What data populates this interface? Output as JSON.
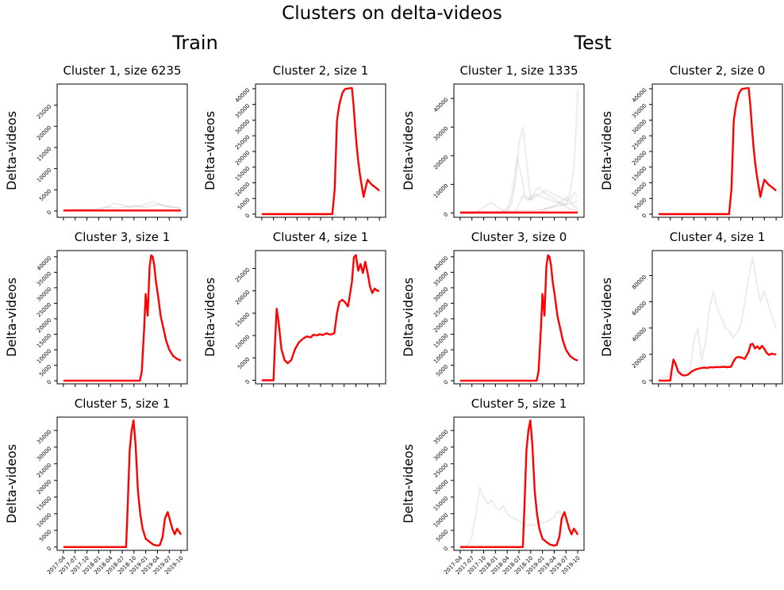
{
  "figure": {
    "title": "Clusters on delta-videos",
    "groups": [
      "Train",
      "Test"
    ]
  },
  "colors": {
    "centroid": "#ff0000",
    "members": "#9a9a9a",
    "axes": "#000000"
  },
  "x_tick_labels": [
    "2017-04",
    "2017-07",
    "2017-10",
    "2018-01",
    "2018-04",
    "2018-07",
    "2018-10",
    "2019-01",
    "2019-04",
    "2019-07",
    "2019-10"
  ],
  "chart_data": [
    {
      "type": "line",
      "group": "Train",
      "title": "Cluster 1, size 6235",
      "ylabel": "Delta-videos",
      "x_label_months": [
        "2017-04",
        "2017-07",
        "2017-10",
        "2018-01",
        "2018-04",
        "2018-07",
        "2018-10",
        "2019-01",
        "2019-04",
        "2019-07",
        "2019-10"
      ],
      "ylim": [
        -1500,
        30000
      ],
      "yticks": [
        0,
        5000,
        10000,
        15000,
        20000,
        25000
      ],
      "show_xtick_labels": false,
      "centroid": {
        "x": [
          0,
          30
        ],
        "y": [
          120,
          120
        ]
      },
      "members": [
        {
          "x": [
            0,
            4,
            8,
            11,
            14,
            18,
            21,
            24,
            27,
            30
          ],
          "y": [
            200,
            400,
            300,
            900,
            600,
            1200,
            800,
            1500,
            1000,
            700
          ]
        },
        {
          "x": [
            0,
            5,
            10,
            13,
            17,
            20,
            23,
            26,
            30
          ],
          "y": [
            100,
            300,
            500,
            1800,
            900,
            1300,
            2200,
            1100,
            600
          ]
        }
      ]
    },
    {
      "type": "line",
      "group": "Train",
      "title": "Cluster 2, size 1",
      "ylabel": "Delta-videos",
      "x_label_months": [
        "2017-04",
        "2017-07",
        "2017-10",
        "2018-01",
        "2018-04",
        "2018-07",
        "2018-10",
        "2019-01",
        "2019-04",
        "2019-07",
        "2019-10"
      ],
      "ylim": [
        -1000,
        41500
      ],
      "yticks": [
        0,
        5000,
        10000,
        15000,
        20000,
        25000,
        30000,
        35000,
        40000
      ],
      "show_xtick_labels": false,
      "centroid": {
        "x": [
          0,
          18,
          18.6,
          19.2,
          19.8,
          20.5,
          21,
          21.4,
          21.8,
          22.2,
          22.6,
          23,
          23.4,
          23.8,
          24.2,
          24.6,
          25,
          25.5,
          26,
          26.5,
          27,
          28,
          29,
          30
        ],
        "y": [
          0,
          0,
          8000,
          30000,
          35000,
          38500,
          39500,
          40000,
          40000,
          40100,
          40200,
          40200,
          35000,
          28000,
          22000,
          17000,
          13000,
          9000,
          5500,
          8500,
          11000,
          9500,
          8500,
          7500
        ]
      },
      "members": []
    },
    {
      "type": "line",
      "group": "Train",
      "title": "Cluster 3, size 1",
      "ylabel": "Delta-videos",
      "x_label_months": [
        "2017-04",
        "2017-07",
        "2017-10",
        "2018-01",
        "2018-04",
        "2018-07",
        "2018-10",
        "2019-01",
        "2019-04",
        "2019-07",
        "2019-10"
      ],
      "ylim": [
        -1000,
        42000
      ],
      "yticks": [
        0,
        5000,
        10000,
        15000,
        20000,
        25000,
        30000,
        35000,
        40000
      ],
      "show_xtick_labels": false,
      "centroid": {
        "x": [
          0,
          19.5,
          20,
          20.6,
          21,
          21.5,
          22,
          22.4,
          22.8,
          23.2,
          23.6,
          24.2,
          24.8,
          25.5,
          26.2,
          27,
          28,
          29,
          30
        ],
        "y": [
          0,
          0,
          3000,
          17000,
          28000,
          21000,
          37000,
          40500,
          40000,
          37000,
          32000,
          27000,
          21000,
          17000,
          13000,
          10000,
          8000,
          7000,
          6500
        ]
      },
      "members": []
    },
    {
      "type": "line",
      "group": "Train",
      "title": "Cluster 4, size 1",
      "ylabel": "Delta-videos",
      "x_label_months": [
        "2017-04",
        "2017-07",
        "2017-10",
        "2018-01",
        "2018-04",
        "2018-07",
        "2018-10",
        "2019-01",
        "2019-04",
        "2019-07",
        "2019-10"
      ],
      "ylim": [
        -800,
        29000
      ],
      "yticks": [
        0,
        5000,
        10000,
        15000,
        20000,
        25000
      ],
      "show_xtick_labels": false,
      "centroid": {
        "x": [
          0,
          3,
          3.4,
          3.8,
          4.3,
          5,
          5.8,
          6.6,
          7.5,
          8.5,
          9.5,
          10.5,
          11.5,
          12.5,
          13.2,
          14,
          14.8,
          15.5,
          16.5,
          17.5,
          18.5,
          19.2,
          19.8,
          20.5,
          21.2,
          22,
          23,
          23.5,
          24,
          24.6,
          25.2,
          25.8,
          26.4,
          27,
          27.6,
          28.2,
          28.8,
          29.5,
          30
        ],
        "y": [
          0,
          0,
          9000,
          16000,
          13000,
          7000,
          4500,
          3800,
          4500,
          7000,
          8500,
          9300,
          9800,
          9600,
          10200,
          10000,
          10300,
          10100,
          10500,
          10200,
          10500,
          15000,
          17500,
          18000,
          17500,
          16500,
          22000,
          27500,
          28000,
          24500,
          26000,
          24000,
          26500,
          24000,
          21000,
          19500,
          20500,
          20000,
          20000
        ]
      },
      "members": []
    },
    {
      "type": "line",
      "group": "Train",
      "title": "Cluster 5, size 1",
      "ylabel": "Delta-videos",
      "x_label_months": [
        "2017-04",
        "2017-07",
        "2017-10",
        "2018-01",
        "2018-04",
        "2018-07",
        "2018-10",
        "2019-01",
        "2019-04",
        "2019-07",
        "2019-10"
      ],
      "ylim": [
        -1000,
        39000
      ],
      "yticks": [
        0,
        5000,
        10000,
        15000,
        20000,
        25000,
        30000,
        35000
      ],
      "show_xtick_labels": true,
      "centroid": {
        "x": [
          0,
          16,
          16.4,
          16.9,
          17.4,
          17.9,
          18.4,
          19,
          19.6,
          20.2,
          21,
          22,
          23,
          24,
          24.6,
          25.3,
          25.9,
          26.6,
          27.2,
          27.8,
          28.4,
          29,
          29.6,
          30
        ],
        "y": [
          0,
          0,
          12000,
          29000,
          35000,
          38000,
          31000,
          17000,
          10000,
          5500,
          2500,
          1500,
          700,
          400,
          600,
          3000,
          8500,
          10500,
          8000,
          5500,
          3800,
          5500,
          4500,
          3700
        ]
      },
      "members": []
    },
    {
      "type": "line",
      "group": "Test",
      "title": "Cluster 1, size 1335",
      "ylabel": "Delta-videos",
      "x_label_months": [
        "2017-04",
        "2017-07",
        "2017-10",
        "2018-01",
        "2018-04",
        "2018-07",
        "2018-10",
        "2019-01",
        "2019-04",
        "2019-07",
        "2019-10"
      ],
      "ylim": [
        -1500,
        45000
      ],
      "yticks": [
        0,
        10000,
        20000,
        30000,
        40000
      ],
      "show_xtick_labels": false,
      "centroid": {
        "x": [
          0,
          30
        ],
        "y": [
          150,
          150
        ]
      },
      "members": [
        {
          "x": [
            0,
            4,
            6,
            8,
            11,
            13,
            14,
            15,
            16,
            17,
            18,
            19,
            20,
            22,
            24,
            26,
            28,
            30
          ],
          "y": [
            0,
            0,
            2000,
            3500,
            800,
            2500,
            10000,
            24000,
            30000,
            17000,
            4500,
            7000,
            9000,
            6500,
            5000,
            3000,
            1500,
            800
          ]
        },
        {
          "x": [
            0,
            10,
            12,
            13.5,
            14.5,
            15.5,
            16.5,
            18,
            20,
            22,
            24,
            26,
            28,
            29,
            30
          ],
          "y": [
            0,
            0,
            500,
            9000,
            19000,
            14000,
            6000,
            4500,
            6500,
            8000,
            6500,
            5000,
            4000,
            2500,
            1500
          ]
        },
        {
          "x": [
            0,
            14,
            15,
            16,
            17,
            19,
            21,
            23,
            25,
            27,
            28,
            29,
            29.6,
            30
          ],
          "y": [
            0,
            0,
            3000,
            6000,
            4500,
            6500,
            5500,
            4500,
            3500,
            3000,
            7000,
            16000,
            30000,
            43000
          ]
        },
        {
          "x": [
            0,
            20,
            22,
            24,
            26,
            27,
            28,
            29,
            30
          ],
          "y": [
            0,
            200,
            1500,
            2500,
            4000,
            5500,
            4500,
            7000,
            6000
          ]
        },
        {
          "x": [
            0,
            18,
            21,
            23,
            25,
            27,
            29,
            30
          ],
          "y": [
            300,
            800,
            1200,
            1800,
            2500,
            3000,
            3500,
            4200
          ]
        }
      ]
    },
    {
      "type": "line",
      "group": "Test",
      "title": "Cluster 2, size 0",
      "ylabel": "Delta-videos",
      "x_label_months": [
        "2017-04",
        "2017-07",
        "2017-10",
        "2018-01",
        "2018-04",
        "2018-07",
        "2018-10",
        "2019-01",
        "2019-04",
        "2019-07",
        "2019-10"
      ],
      "ylim": [
        -1000,
        41500
      ],
      "yticks": [
        0,
        5000,
        10000,
        15000,
        20000,
        25000,
        30000,
        35000,
        40000
      ],
      "show_xtick_labels": false,
      "centroid": {
        "x": [
          0,
          18,
          18.6,
          19.2,
          19.8,
          20.5,
          21,
          21.4,
          21.8,
          22.2,
          22.6,
          23,
          23.4,
          23.8,
          24.2,
          24.6,
          25,
          25.5,
          26,
          26.5,
          27,
          28,
          29,
          30
        ],
        "y": [
          0,
          0,
          8000,
          30000,
          35000,
          38500,
          39500,
          40000,
          40000,
          40100,
          40200,
          40200,
          35000,
          28000,
          22000,
          17000,
          13000,
          9000,
          5500,
          8500,
          11000,
          9500,
          8500,
          7500
        ]
      },
      "members": []
    },
    {
      "type": "line",
      "group": "Test",
      "title": "Cluster 3, size 0",
      "ylabel": "Delta-videos",
      "x_label_months": [
        "2017-04",
        "2017-07",
        "2017-10",
        "2018-01",
        "2018-04",
        "2018-07",
        "2018-10",
        "2019-01",
        "2019-04",
        "2019-07",
        "2019-10"
      ],
      "ylim": [
        -1000,
        42000
      ],
      "yticks": [
        0,
        5000,
        10000,
        15000,
        20000,
        25000,
        30000,
        35000,
        40000
      ],
      "show_xtick_labels": false,
      "centroid": {
        "x": [
          0,
          19.5,
          20,
          20.6,
          21,
          21.5,
          22,
          22.4,
          22.8,
          23.2,
          23.6,
          24.2,
          24.8,
          25.5,
          26.2,
          27,
          28,
          29,
          30
        ],
        "y": [
          0,
          0,
          3000,
          17000,
          28000,
          21000,
          37000,
          40500,
          40000,
          37000,
          32000,
          27000,
          21000,
          17000,
          13000,
          10000,
          8000,
          7000,
          6500
        ]
      },
      "members": []
    },
    {
      "type": "line",
      "group": "Test",
      "title": "Cluster 4, size 1",
      "ylabel": "Delta-videos",
      "x_label_months": [
        "2017-04",
        "2017-07",
        "2017-10",
        "2018-01",
        "2018-04",
        "2018-07",
        "2018-10",
        "2019-01",
        "2019-04",
        "2019-07",
        "2019-10"
      ],
      "ylim": [
        -2500,
        99000
      ],
      "yticks": [
        0,
        20000,
        40000,
        60000,
        80000
      ],
      "show_xtick_labels": false,
      "centroid": {
        "x": [
          0,
          3,
          3.4,
          3.8,
          4.3,
          5,
          5.8,
          6.6,
          7.5,
          8.5,
          9.5,
          10.5,
          11.5,
          12.5,
          13.2,
          14,
          14.8,
          15.5,
          16.5,
          17.5,
          18.5,
          19.2,
          19.8,
          20.5,
          21.2,
          22,
          23,
          23.5,
          24,
          24.6,
          25.2,
          25.8,
          26.4,
          27,
          27.6,
          28.2,
          28.8,
          29.5,
          30
        ],
        "y": [
          0,
          0,
          9000,
          16000,
          13000,
          7000,
          4500,
          3800,
          4500,
          7000,
          8500,
          9300,
          9800,
          9600,
          10200,
          10000,
          10300,
          10100,
          10500,
          10200,
          10500,
          15000,
          17500,
          18000,
          17500,
          16500,
          22000,
          27500,
          28000,
          24500,
          26000,
          24000,
          26500,
          24000,
          21000,
          19500,
          20500,
          20000,
          20000
        ]
      },
      "members": [
        {
          "x": [
            0,
            5,
            8,
            9,
            10,
            11,
            12,
            13,
            14,
            15,
            16,
            17,
            18,
            19,
            20,
            21,
            22,
            23,
            24,
            25,
            26,
            27,
            28,
            29,
            30
          ],
          "y": [
            1000,
            5000,
            8000,
            30000,
            40000,
            15000,
            30000,
            55000,
            68000,
            55000,
            48000,
            40000,
            38000,
            33000,
            36000,
            42000,
            60000,
            78000,
            94000,
            75000,
            60000,
            68000,
            58000,
            48000,
            39000
          ]
        }
      ]
    },
    {
      "type": "line",
      "group": "Test",
      "title": "Cluster 5, size 1",
      "ylabel": "Delta-videos",
      "x_label_months": [
        "2017-04",
        "2017-07",
        "2017-10",
        "2018-01",
        "2018-04",
        "2018-07",
        "2018-10",
        "2019-01",
        "2019-04",
        "2019-07",
        "2019-10"
      ],
      "ylim": [
        -1000,
        39000
      ],
      "yticks": [
        0,
        5000,
        10000,
        15000,
        20000,
        25000,
        30000,
        35000
      ],
      "show_xtick_labels": true,
      "centroid": {
        "x": [
          0,
          16,
          16.4,
          16.9,
          17.4,
          17.9,
          18.4,
          19,
          19.6,
          20.2,
          21,
          22,
          23,
          24,
          24.6,
          25.3,
          25.9,
          26.6,
          27.2,
          27.8,
          28.4,
          29,
          29.6,
          30
        ],
        "y": [
          0,
          0,
          12000,
          29000,
          35000,
          38000,
          31000,
          17000,
          10000,
          5500,
          2500,
          1500,
          700,
          400,
          600,
          3000,
          8500,
          10500,
          8000,
          5500,
          3800,
          5500,
          4500,
          3700
        ]
      },
      "members": [
        {
          "x": [
            0,
            2,
            3,
            4,
            5,
            6,
            7,
            8,
            9,
            10,
            11,
            12,
            13,
            14,
            16,
            18,
            20,
            22,
            24,
            25,
            26,
            27,
            28,
            29,
            30
          ],
          "y": [
            0,
            500,
            3000,
            10000,
            18000,
            15000,
            13000,
            14000,
            12000,
            11000,
            12500,
            10000,
            9000,
            8500,
            7000,
            6500,
            7000,
            7500,
            9000,
            11000,
            9500,
            8000,
            6000,
            5500,
            5000
          ]
        }
      ]
    }
  ]
}
